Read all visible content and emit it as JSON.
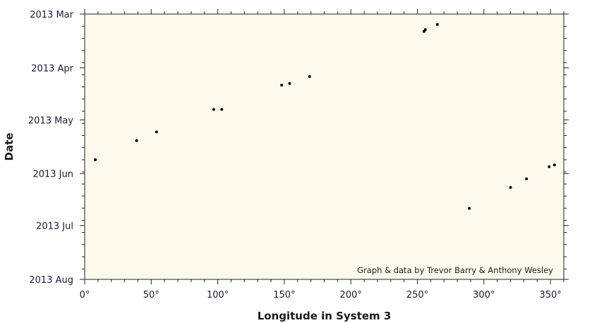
{
  "chart_data": {
    "type": "scatter",
    "xlabel": "Longitude in System 3",
    "ylabel": "Date",
    "credit": "Graph & data by Trevor Barry & Anthony Wesley",
    "xlim": [
      0,
      360
    ],
    "x_ticks": [
      {
        "value": 0,
        "label": "0°"
      },
      {
        "value": 50,
        "label": "50°"
      },
      {
        "value": 100,
        "label": "100°"
      },
      {
        "value": 150,
        "label": "150°"
      },
      {
        "value": 200,
        "label": "200°"
      },
      {
        "value": 250,
        "label": "250°"
      },
      {
        "value": 300,
        "label": "300°"
      },
      {
        "value": 350,
        "label": "350°"
      }
    ],
    "ylim": [
      "2013-03-01",
      "2013-08-01"
    ],
    "y_inverted": true,
    "y_ticks": [
      {
        "value": "2013-03-01",
        "label": "2013 Mar"
      },
      {
        "value": "2013-04-01",
        "label": "2013 Apr"
      },
      {
        "value": "2013-05-01",
        "label": "2013 May"
      },
      {
        "value": "2013-06-01",
        "label": "2013 Jun"
      },
      {
        "value": "2013-07-01",
        "label": "2013 Jul"
      },
      {
        "value": "2013-08-01",
        "label": "2013 Aug"
      }
    ],
    "grid": false,
    "plot_background": "#fdf9ec",
    "point_color": "#000000",
    "points": [
      {
        "x": 8,
        "y": "2013-05-24"
      },
      {
        "x": 39,
        "y": "2013-05-13"
      },
      {
        "x": 54,
        "y": "2013-05-08"
      },
      {
        "x": 97,
        "y": "2013-04-25"
      },
      {
        "x": 103,
        "y": "2013-04-25"
      },
      {
        "x": 148,
        "y": "2013-04-11"
      },
      {
        "x": 154,
        "y": "2013-04-10"
      },
      {
        "x": 169,
        "y": "2013-04-06"
      },
      {
        "x": 255,
        "y": "2013-03-11"
      },
      {
        "x": 256,
        "y": "2013-03-10"
      },
      {
        "x": 265,
        "y": "2013-03-07"
      },
      {
        "x": 289,
        "y": "2013-06-21"
      },
      {
        "x": 320,
        "y": "2013-06-09"
      },
      {
        "x": 332,
        "y": "2013-06-04"
      },
      {
        "x": 349,
        "y": "2013-05-28"
      },
      {
        "x": 353,
        "y": "2013-05-27"
      }
    ]
  }
}
